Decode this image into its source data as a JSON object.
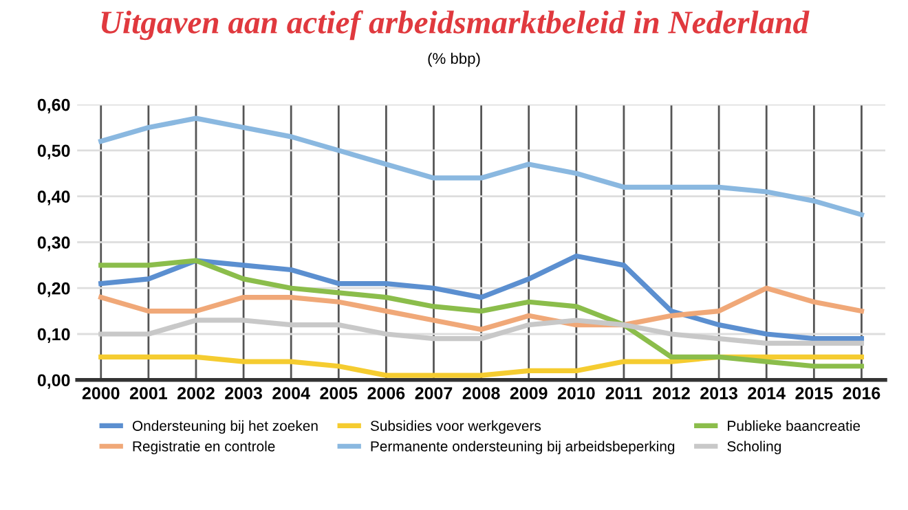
{
  "chart_data": {
    "type": "line",
    "title": "Uitgaven aan actief arbeidsmarktbeleid in Nederland",
    "subtitle": "(% bbp)",
    "categories": [
      "2000",
      "2001",
      "2002",
      "2003",
      "2004",
      "2005",
      "2006",
      "2007",
      "2008",
      "2009",
      "2010",
      "2011",
      "2012",
      "2013",
      "2014",
      "2015",
      "2016"
    ],
    "series": [
      {
        "name": "Ondersteuning bij het zoeken",
        "color": "#5b8fd0",
        "values": [
          0.21,
          0.22,
          0.26,
          0.25,
          0.24,
          0.21,
          0.21,
          0.2,
          0.18,
          0.22,
          0.27,
          0.25,
          0.15,
          0.12,
          0.1,
          0.09,
          0.09
        ]
      },
      {
        "name": "Subsidies voor werkgevers",
        "color": "#f5cc30",
        "values": [
          0.05,
          0.05,
          0.05,
          0.04,
          0.04,
          0.03,
          0.01,
          0.01,
          0.01,
          0.02,
          0.02,
          0.04,
          0.04,
          0.05,
          0.05,
          0.05,
          0.05
        ]
      },
      {
        "name": "Publieke baancreatie",
        "color": "#8bbd4b",
        "values": [
          0.25,
          0.25,
          0.26,
          0.22,
          0.2,
          0.19,
          0.18,
          0.16,
          0.15,
          0.17,
          0.16,
          0.12,
          0.05,
          0.05,
          0.04,
          0.03,
          0.03
        ]
      },
      {
        "name": "Registratie en controle",
        "color": "#f0a878",
        "values": [
          0.18,
          0.15,
          0.15,
          0.18,
          0.18,
          0.17,
          0.15,
          0.13,
          0.11,
          0.14,
          0.12,
          0.12,
          0.14,
          0.15,
          0.2,
          0.17,
          0.15
        ]
      },
      {
        "name": "Permanente ondersteuning bij arbeidsbeperking",
        "color": "#8ab8e0",
        "values": [
          0.52,
          0.55,
          0.57,
          0.55,
          0.53,
          0.5,
          0.47,
          0.44,
          0.44,
          0.47,
          0.45,
          0.42,
          0.42,
          0.42,
          0.41,
          0.39,
          0.36
        ]
      },
      {
        "name": "Scholing",
        "color": "#c8c8c8",
        "values": [
          0.1,
          0.1,
          0.13,
          0.13,
          0.12,
          0.12,
          0.1,
          0.09,
          0.09,
          0.12,
          0.13,
          0.12,
          0.1,
          0.09,
          0.08,
          0.08,
          0.08
        ]
      }
    ],
    "ylim": [
      0,
      0.6
    ],
    "yticks": [
      {
        "value": 0,
        "label": "0,00"
      },
      {
        "value": 0.1,
        "label": "0,10"
      },
      {
        "value": 0.2,
        "label": "0,20"
      },
      {
        "value": 0.3,
        "label": "0,30"
      },
      {
        "value": 0.4,
        "label": "0,40"
      },
      {
        "value": 0.5,
        "label": "0,50"
      },
      {
        "value": 0.6,
        "label": "0,60"
      }
    ],
    "grid": true,
    "legend": "bottom",
    "marker": "none",
    "line_style": "solid"
  }
}
